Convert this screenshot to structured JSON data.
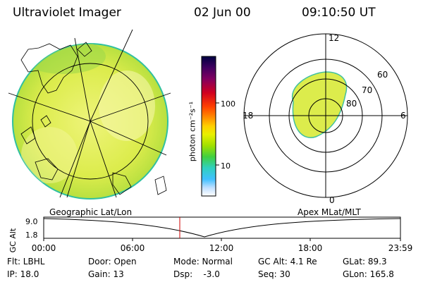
{
  "header": {
    "title": "Ultraviolet Imager",
    "date": "02 Jun 00",
    "time": "09:10:50 UT"
  },
  "geo_panel": {
    "label": "Geographic Lat/Lon"
  },
  "colorbar": {
    "unit_label": "photon cm⁻²s⁻¹",
    "ticks": [
      "100",
      "10"
    ]
  },
  "polar_panel": {
    "label": "Apex MLat/MLT",
    "mlt_labels": {
      "top": "12",
      "bottom": "0",
      "left": "18",
      "right": "6"
    },
    "lat_labels": [
      "60",
      "70",
      "80"
    ]
  },
  "altitude_plot": {
    "ylabel": "GC Alt",
    "y_ticks": [
      "9.0",
      "1.8"
    ],
    "x_ticks": [
      "00:00",
      "06:00",
      "12:00",
      "18:00",
      "23:59"
    ],
    "marker_color": "#cc0000"
  },
  "info": {
    "row1": {
      "flt": "Flt: LBHL",
      "door": "Door: Open",
      "mode": "Mode: Normal",
      "gc_alt": "GC Alt: 4.1 Re",
      "glat": "GLat: 89.3"
    },
    "row2": {
      "ip": "IP: 18.0",
      "gain": "Gain: 13",
      "dsp": "Dsp:    -3.0",
      "seq": "Seq: 30",
      "glon": "GLon: 165.8"
    }
  },
  "colors": {
    "image_fill": "#e6ee52",
    "colorbar_stops": [
      "#000040",
      "#400060",
      "#800060",
      "#d00020",
      "#ff4000",
      "#ff9000",
      "#ffd000",
      "#e8f000",
      "#a0e000",
      "#40d040",
      "#30d0c0",
      "#40c0ff",
      "#c0e0ff",
      "#ffffff"
    ]
  }
}
